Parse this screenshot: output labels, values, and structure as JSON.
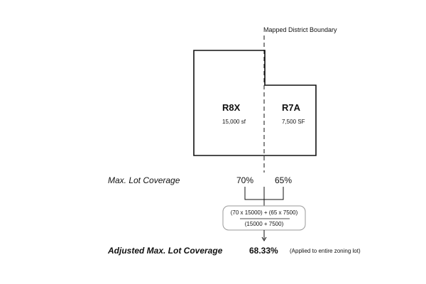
{
  "boundary_label": "Mapped District Boundary",
  "districts": [
    {
      "name": "R8X",
      "area": "15,000 sf",
      "coverage": "70%"
    },
    {
      "name": "R7A",
      "area": "7,500 SF",
      "coverage": "65%"
    }
  ],
  "row_label": "Max. Lot Coverage",
  "formula": {
    "numerator": "(70 x 15000) + (65 x 7500)",
    "denominator": "(15000 + 7500)"
  },
  "result": {
    "label": "Adjusted Max. Lot Coverage",
    "value": "68.33%",
    "note": "(Applied to entire zoning lot)"
  }
}
